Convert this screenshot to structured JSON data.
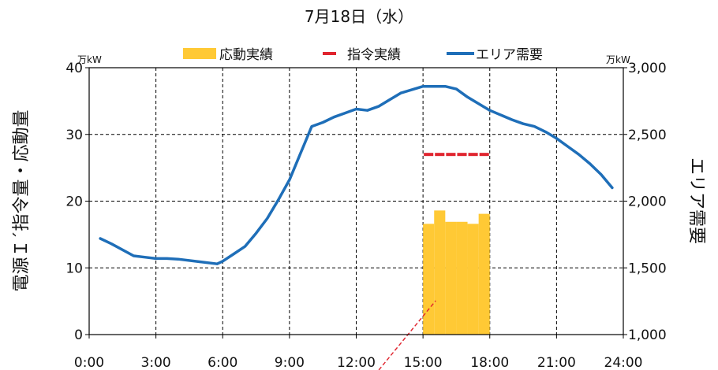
{
  "chart_data": {
    "type": "bar",
    "title": "7月18日（水）",
    "x_ticks": [
      "0:00",
      "3:00",
      "6:00",
      "9:00",
      "12:00",
      "15:00",
      "18:00",
      "21:00",
      "24:00"
    ],
    "xlim_hours": [
      0,
      24
    ],
    "y_left": {
      "label": "電源Ｉ´指令量・応動量",
      "unit": "万kW",
      "ylim": [
        0,
        40
      ],
      "ticks": [
        "0",
        "10",
        "20",
        "30",
        "40"
      ]
    },
    "y_right": {
      "label": "エリア需要",
      "unit": "万kW",
      "ylim": [
        1000,
        3000
      ],
      "ticks": [
        "1,000",
        "1,500",
        "2,000",
        "2,500",
        "3,000"
      ]
    },
    "grid": true,
    "legend": {
      "position": "top",
      "entries": [
        {
          "name": "応動実績",
          "color": "#FFC935",
          "kind": "bar"
        },
        {
          "name": "指令実績",
          "color": "#E0242E",
          "kind": "dash"
        },
        {
          "name": "エリア需要",
          "color": "#1E6EB8",
          "kind": "line"
        }
      ]
    },
    "series": [
      {
        "name": "応動実績",
        "axis": "left",
        "color": "#FFC935",
        "x": [
          "15:00",
          "15:30",
          "16:00",
          "16:30",
          "17:00",
          "17:30"
        ],
        "values": [
          16.6,
          18.6,
          16.9,
          16.9,
          16.6,
          18.1
        ]
      },
      {
        "name": "指令実績",
        "axis": "left",
        "color": "#E0242E",
        "x": [
          "15:00",
          "15:30",
          "16:00",
          "16:30",
          "17:00",
          "17:30",
          "18:00"
        ],
        "values": [
          27,
          27,
          27,
          27,
          27,
          27,
          27
        ]
      },
      {
        "name": "エリア需要",
        "axis": "right",
        "color": "#1E6EB8",
        "x": [
          "0:30",
          "1:00",
          "2:00",
          "2:30",
          "3:00",
          "3:30",
          "4:00",
          "5:00",
          "5:45",
          "6:00",
          "6:30",
          "7:00",
          "7:30",
          "8:00",
          "8:30",
          "9:00",
          "10:00",
          "10:30",
          "11:00",
          "11:30",
          "12:00",
          "12:30",
          "13:00",
          "14:00",
          "15:00",
          "16:00",
          "16:30",
          "17:00",
          "18:00",
          "19:00",
          "19:30",
          "20:00",
          "20:30",
          "21:00",
          "21:30",
          "22:00",
          "22:30",
          "23:00",
          "23:30"
        ],
        "values": [
          1720,
          1680,
          1590,
          1580,
          1570,
          1570,
          1565,
          1545,
          1530,
          1550,
          1605,
          1660,
          1760,
          1870,
          2010,
          2160,
          2560,
          2590,
          2630,
          2660,
          2690,
          2680,
          2710,
          2810,
          2860,
          2860,
          2840,
          2780,
          2680,
          2610,
          2580,
          2560,
          2520,
          2470,
          2410,
          2350,
          2280,
          2200,
          2100
        ]
      }
    ],
    "annotation": {
      "kind": "dashed-arrow",
      "color": "#E0242E",
      "from_time": "15:00",
      "to_time": "15:30"
    }
  }
}
